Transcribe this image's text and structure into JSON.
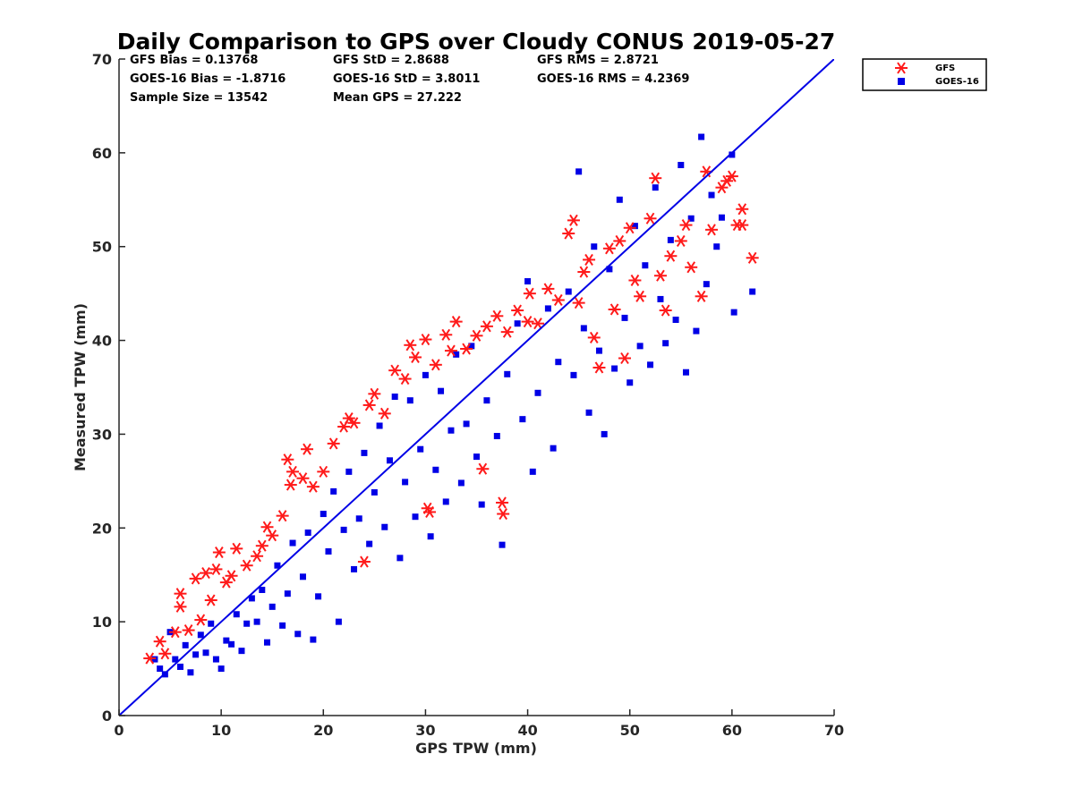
{
  "chart_data": {
    "type": "scatter",
    "title": "Daily Comparison to GPS over Cloudy CONUS 2019-05-27",
    "xlabel": "GPS TPW (mm)",
    "ylabel": "Measured TPW (mm)",
    "xlim": [
      0,
      70
    ],
    "ylim": [
      0,
      70
    ],
    "xticks": [
      "0",
      "10",
      "20",
      "30",
      "40",
      "50",
      "60",
      "70"
    ],
    "yticks": [
      "0",
      "10",
      "20",
      "30",
      "40",
      "50",
      "60",
      "70"
    ],
    "grid": false,
    "legend_position": "outside top-right",
    "stats": {
      "gfs_bias": "GFS Bias = 0.13768",
      "gfs_std": "GFS StD = 2.8688",
      "gfs_rms": "GFS RMS = 2.8721",
      "goes_bias": "GOES-16 Bias = -1.8716",
      "goes_std": "GOES-16 StD = 3.8011",
      "goes_rms": "GOES-16 RMS = 4.2369",
      "sample_size": "Sample Size = 13542",
      "mean_gps": "Mean GPS = 27.222"
    },
    "reference_line": {
      "from": [
        0,
        0
      ],
      "to": [
        70,
        70
      ],
      "color": "#0000e6"
    },
    "series": [
      {
        "name": "GFS",
        "marker": "asterisk",
        "color": "#ff1a1a",
        "points": [
          [
            3.0,
            6.1
          ],
          [
            4.0,
            7.9
          ],
          [
            4.5,
            6.6
          ],
          [
            5.5,
            8.9
          ],
          [
            6.0,
            13.0
          ],
          [
            6.0,
            11.6
          ],
          [
            6.8,
            9.1
          ],
          [
            7.5,
            14.6
          ],
          [
            8.0,
            10.2
          ],
          [
            8.5,
            15.2
          ],
          [
            9.0,
            12.3
          ],
          [
            9.5,
            15.6
          ],
          [
            9.8,
            17.4
          ],
          [
            10.5,
            14.2
          ],
          [
            11.0,
            14.9
          ],
          [
            11.5,
            17.8
          ],
          [
            12.5,
            16.0
          ],
          [
            13.5,
            17.0
          ],
          [
            14.0,
            18.1
          ],
          [
            14.5,
            20.1
          ],
          [
            15.0,
            19.2
          ],
          [
            16.0,
            21.3
          ],
          [
            16.5,
            27.3
          ],
          [
            16.8,
            24.6
          ],
          [
            17.0,
            26.0
          ],
          [
            18.0,
            25.3
          ],
          [
            18.4,
            28.4
          ],
          [
            19.0,
            24.4
          ],
          [
            20.0,
            26.0
          ],
          [
            21.0,
            29.0
          ],
          [
            22.0,
            30.8
          ],
          [
            22.5,
            31.7
          ],
          [
            23.0,
            31.2
          ],
          [
            24.0,
            16.4
          ],
          [
            24.5,
            33.1
          ],
          [
            25.0,
            34.3
          ],
          [
            26.0,
            32.2
          ],
          [
            27.0,
            36.8
          ],
          [
            28.0,
            35.9
          ],
          [
            28.5,
            39.5
          ],
          [
            29.0,
            38.2
          ],
          [
            30.0,
            40.1
          ],
          [
            30.2,
            22.1
          ],
          [
            30.4,
            21.7
          ],
          [
            31.0,
            37.4
          ],
          [
            32.0,
            40.6
          ],
          [
            32.5,
            38.9
          ],
          [
            33.0,
            42.0
          ],
          [
            34.0,
            39.1
          ],
          [
            35.0,
            40.5
          ],
          [
            35.6,
            26.3
          ],
          [
            36.0,
            41.5
          ],
          [
            37.0,
            42.6
          ],
          [
            37.5,
            22.7
          ],
          [
            37.6,
            21.5
          ],
          [
            38.0,
            40.9
          ],
          [
            39.0,
            43.2
          ],
          [
            40.0,
            42.0
          ],
          [
            40.2,
            45.0
          ],
          [
            41.0,
            41.8
          ],
          [
            42.0,
            45.5
          ],
          [
            43.0,
            44.3
          ],
          [
            44.0,
            51.4
          ],
          [
            44.5,
            52.8
          ],
          [
            45.0,
            44.0
          ],
          [
            45.5,
            47.3
          ],
          [
            46.0,
            48.6
          ],
          [
            46.5,
            40.3
          ],
          [
            47.0,
            37.1
          ],
          [
            48.0,
            49.8
          ],
          [
            48.5,
            43.3
          ],
          [
            49.0,
            50.6
          ],
          [
            49.5,
            38.1
          ],
          [
            50.0,
            52.0
          ],
          [
            50.5,
            46.4
          ],
          [
            51.0,
            44.7
          ],
          [
            52.0,
            53.0
          ],
          [
            52.5,
            57.3
          ],
          [
            53.0,
            46.9
          ],
          [
            53.5,
            43.2
          ],
          [
            54.0,
            49.0
          ],
          [
            55.0,
            50.6
          ],
          [
            55.5,
            52.3
          ],
          [
            56.0,
            47.8
          ],
          [
            57.0,
            44.7
          ],
          [
            57.5,
            58.0
          ],
          [
            58.0,
            51.8
          ],
          [
            59.0,
            56.3
          ],
          [
            59.5,
            57.0
          ],
          [
            60.0,
            57.5
          ],
          [
            60.5,
            52.3
          ],
          [
            61.0,
            54.0
          ],
          [
            61.0,
            52.3
          ],
          [
            62.0,
            48.8
          ]
        ]
      },
      {
        "name": "GOES-16",
        "marker": "square",
        "color": "#0000e6",
        "points": [
          [
            3.5,
            6.0
          ],
          [
            4.0,
            5.0
          ],
          [
            4.5,
            4.4
          ],
          [
            5.0,
            8.9
          ],
          [
            5.5,
            6.0
          ],
          [
            6.0,
            5.2
          ],
          [
            6.5,
            7.5
          ],
          [
            7.0,
            4.6
          ],
          [
            7.5,
            6.5
          ],
          [
            8.0,
            8.6
          ],
          [
            8.5,
            6.7
          ],
          [
            9.0,
            9.8
          ],
          [
            9.5,
            6.0
          ],
          [
            10.0,
            5.0
          ],
          [
            10.5,
            8.0
          ],
          [
            11.0,
            7.6
          ],
          [
            11.5,
            10.8
          ],
          [
            12.0,
            6.9
          ],
          [
            12.5,
            9.8
          ],
          [
            13.0,
            12.5
          ],
          [
            13.5,
            10.0
          ],
          [
            14.0,
            13.4
          ],
          [
            14.5,
            7.8
          ],
          [
            15.0,
            11.6
          ],
          [
            15.5,
            16.0
          ],
          [
            16.0,
            9.6
          ],
          [
            16.5,
            13.0
          ],
          [
            17.0,
            18.4
          ],
          [
            17.5,
            8.7
          ],
          [
            18.0,
            14.8
          ],
          [
            18.5,
            19.5
          ],
          [
            19.0,
            8.1
          ],
          [
            19.5,
            12.7
          ],
          [
            20.0,
            21.5
          ],
          [
            20.5,
            17.5
          ],
          [
            21.0,
            23.9
          ],
          [
            21.5,
            10.0
          ],
          [
            22.0,
            19.8
          ],
          [
            22.5,
            26.0
          ],
          [
            23.0,
            15.6
          ],
          [
            23.5,
            21.0
          ],
          [
            24.0,
            28.0
          ],
          [
            24.5,
            18.3
          ],
          [
            25.0,
            23.8
          ],
          [
            25.5,
            30.9
          ],
          [
            26.0,
            20.1
          ],
          [
            26.5,
            27.2
          ],
          [
            27.0,
            34.0
          ],
          [
            27.5,
            16.8
          ],
          [
            28.0,
            24.9
          ],
          [
            28.5,
            33.6
          ],
          [
            29.0,
            21.2
          ],
          [
            29.5,
            28.4
          ],
          [
            30.0,
            36.3
          ],
          [
            30.5,
            19.1
          ],
          [
            31.0,
            26.2
          ],
          [
            31.5,
            34.6
          ],
          [
            32.0,
            22.8
          ],
          [
            32.5,
            30.4
          ],
          [
            33.0,
            38.5
          ],
          [
            33.5,
            24.8
          ],
          [
            34.0,
            31.1
          ],
          [
            34.5,
            39.4
          ],
          [
            35.0,
            27.6
          ],
          [
            35.5,
            22.5
          ],
          [
            36.0,
            33.6
          ],
          [
            37.0,
            29.8
          ],
          [
            37.5,
            18.2
          ],
          [
            38.0,
            36.4
          ],
          [
            39.0,
            41.8
          ],
          [
            39.5,
            31.6
          ],
          [
            40.0,
            46.3
          ],
          [
            40.5,
            26.0
          ],
          [
            41.0,
            34.4
          ],
          [
            42.0,
            43.4
          ],
          [
            42.5,
            28.5
          ],
          [
            43.0,
            37.7
          ],
          [
            44.0,
            45.2
          ],
          [
            44.5,
            36.3
          ],
          [
            45.0,
            58.0
          ],
          [
            45.5,
            41.3
          ],
          [
            46.0,
            32.3
          ],
          [
            46.5,
            50.0
          ],
          [
            47.0,
            38.9
          ],
          [
            47.5,
            30.0
          ],
          [
            48.0,
            47.6
          ],
          [
            48.5,
            37.0
          ],
          [
            49.0,
            55.0
          ],
          [
            49.5,
            42.4
          ],
          [
            50.0,
            35.5
          ],
          [
            50.5,
            52.2
          ],
          [
            51.0,
            39.4
          ],
          [
            51.5,
            48.0
          ],
          [
            52.0,
            37.4
          ],
          [
            52.5,
            56.3
          ],
          [
            53.0,
            44.4
          ],
          [
            53.5,
            39.7
          ],
          [
            54.0,
            50.7
          ],
          [
            54.5,
            42.2
          ],
          [
            55.0,
            58.7
          ],
          [
            55.5,
            36.6
          ],
          [
            56.0,
            53.0
          ],
          [
            56.5,
            41.0
          ],
          [
            57.0,
            61.7
          ],
          [
            57.5,
            46.0
          ],
          [
            58.0,
            55.5
          ],
          [
            58.5,
            50.0
          ],
          [
            59.0,
            53.1
          ],
          [
            60.0,
            59.8
          ],
          [
            60.2,
            43.0
          ],
          [
            62.0,
            45.2
          ]
        ]
      }
    ]
  }
}
